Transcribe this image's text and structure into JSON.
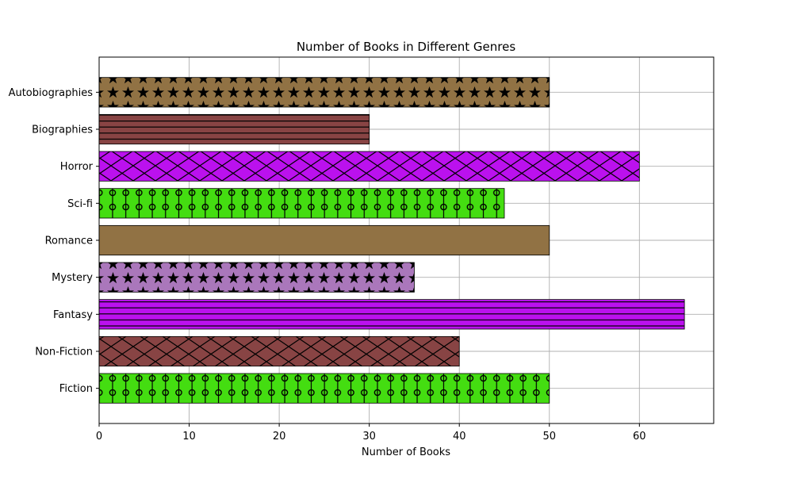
{
  "chart_data": {
    "type": "bar",
    "orientation": "horizontal",
    "title": "Number of Books in Different Genres",
    "xlabel": "Number of Books",
    "ylabel": "",
    "xlim": [
      0,
      68.25
    ],
    "xticks": [
      0,
      10,
      20,
      30,
      40,
      50,
      60
    ],
    "grid": true,
    "categories": [
      "Fiction",
      "Non-Fiction",
      "Fantasy",
      "Mystery",
      "Romance",
      "Sci-fi",
      "Horror",
      "Biographies",
      "Autobiographies"
    ],
    "values": [
      50,
      40,
      65,
      35,
      50,
      45,
      60,
      30,
      50
    ],
    "bar_colors": [
      "#44dd11",
      "#884444",
      "#bb11ee",
      "#aa77bb",
      "#917244",
      "#44dd11",
      "#bb11ee",
      "#884444",
      "#917244"
    ],
    "bar_patterns": [
      "circles-vlines",
      "crosshatch",
      "hlines",
      "stars",
      "none",
      "circles-vlines",
      "crosshatch",
      "hlines",
      "stars"
    ]
  }
}
